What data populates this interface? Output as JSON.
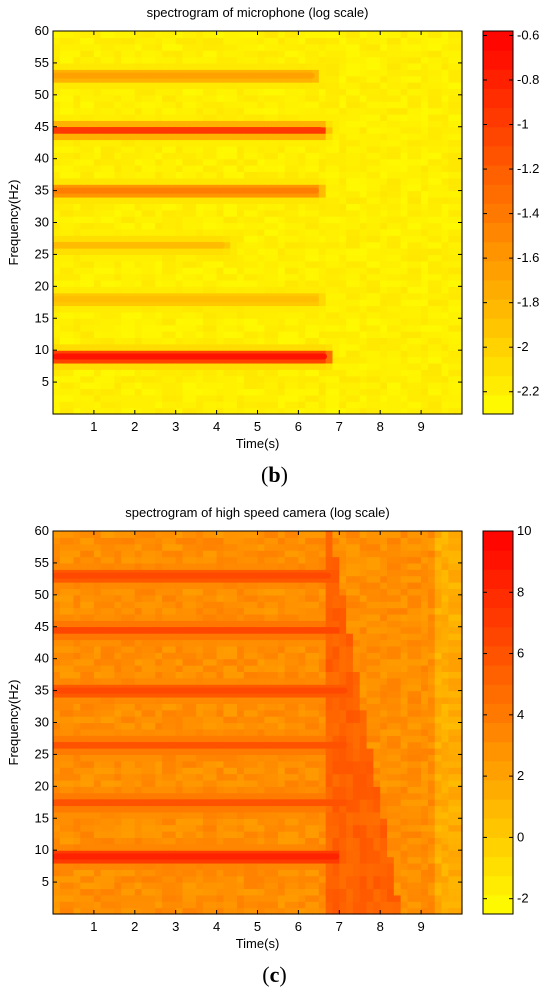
{
  "chart_data": [
    {
      "type": "heatmap",
      "panel_label_prefix": "(",
      "panel_letter": "b",
      "panel_label_suffix": ")",
      "title": "spectrogram of microphone (log scale)",
      "xlabel": "Time(s)",
      "ylabel": "Frequency(Hz)",
      "xlim": [
        0,
        10
      ],
      "ylim": [
        0,
        60
      ],
      "xticks": [
        1,
        2,
        3,
        4,
        5,
        6,
        7,
        8,
        9
      ],
      "yticks": [
        5,
        10,
        15,
        20,
        25,
        30,
        35,
        40,
        45,
        50,
        55,
        60
      ],
      "colorbar": {
        "range": [
          -2.3,
          -0.58
        ],
        "ticks": [
          -2.2,
          -2,
          -1.8,
          -1.6,
          -1.4,
          -1.2,
          -1,
          -0.8,
          -0.6
        ],
        "tick_labels": [
          "-2.2",
          "-2",
          "-1.8",
          "-1.6",
          "-1.4",
          "-1.2",
          "-1",
          "-0.8",
          "-0.6"
        ],
        "low_color": "#ffff00",
        "high_color": "#ff0000"
      },
      "background_value": -2.2,
      "bands": [
        {
          "frequency": 9,
          "value": -0.65,
          "t_end": 6.7
        },
        {
          "frequency": 44.5,
          "value": -0.95,
          "t_end": 6.6
        },
        {
          "frequency": 35,
          "value": -1.4,
          "t_end": 6.5
        },
        {
          "frequency": 53,
          "value": -1.65,
          "t_end": 6.4
        },
        {
          "frequency": 26.5,
          "value": -1.85,
          "t_end": 4.2
        },
        {
          "frequency": 18,
          "value": -1.85,
          "t_end": 6.5
        }
      ]
    },
    {
      "type": "heatmap",
      "panel_label_prefix": "(",
      "panel_letter": "c",
      "panel_label_suffix": ")",
      "title": "spectrogram of high speed camera (log scale)",
      "xlabel": "Time(s)",
      "ylabel": "Frequency(Hz)",
      "xlim": [
        0,
        10
      ],
      "ylim": [
        0,
        60
      ],
      "xticks": [
        1,
        2,
        3,
        4,
        5,
        6,
        7,
        8,
        9
      ],
      "yticks": [
        5,
        10,
        15,
        20,
        25,
        30,
        35,
        40,
        45,
        50,
        55,
        60
      ],
      "colorbar": {
        "range": [
          -2.5,
          10
        ],
        "ticks": [
          -2,
          0,
          2,
          4,
          6,
          8,
          10
        ],
        "tick_labels": [
          "-2",
          "0",
          "2",
          "4",
          "6",
          "8",
          "10"
        ],
        "low_color": "#ffff00",
        "high_color": "#ff0000"
      },
      "background_value": 3,
      "bands": [
        {
          "frequency": 9,
          "value": 8.5,
          "t_end": 7.0
        },
        {
          "frequency": 53,
          "value": 6.5,
          "t_end": 6.8
        },
        {
          "frequency": 44.5,
          "value": 6.5,
          "t_end": 7.0
        },
        {
          "frequency": 35,
          "value": 6.5,
          "t_end": 7.2
        },
        {
          "frequency": 26.5,
          "value": 6.0,
          "t_end": 7.2
        },
        {
          "frequency": 17.5,
          "value": 6.0,
          "t_end": 7.2
        }
      ],
      "transition_region": {
        "t_start": 6.6,
        "t_end": 8.5,
        "value": 5.2
      }
    }
  ]
}
